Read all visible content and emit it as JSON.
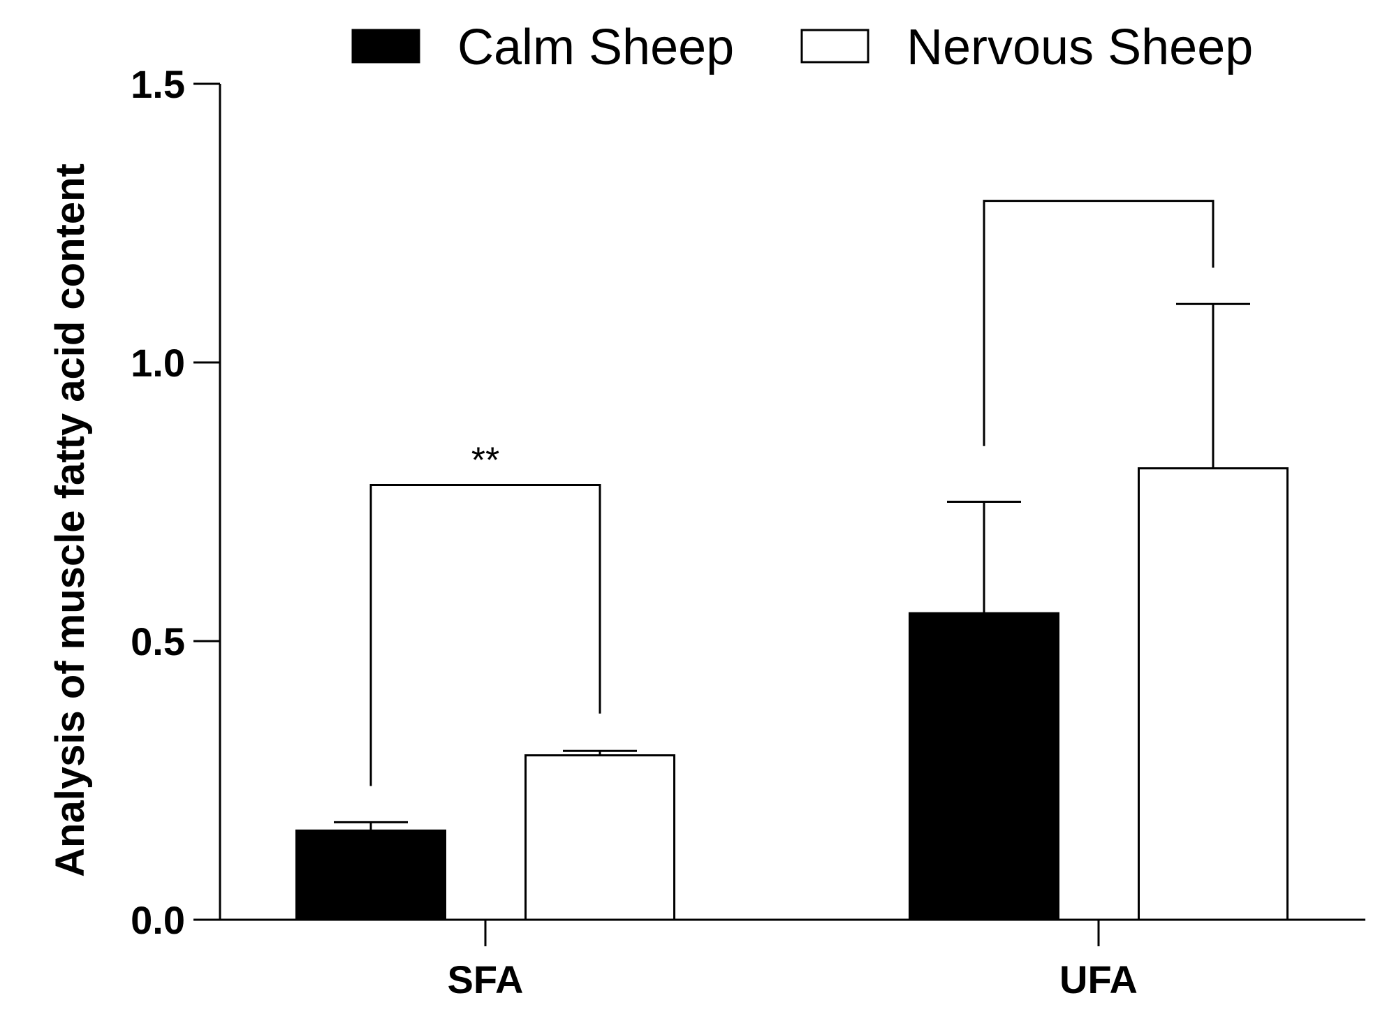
{
  "chart_data": {
    "type": "bar",
    "title": "",
    "xlabel": "",
    "ylabel": "Analysis of muscle fatty acid content",
    "ylim": [
      0,
      1.5
    ],
    "yticks": [
      "0.0",
      "0.5",
      "1.0",
      "1.5"
    ],
    "categories": [
      "SFA",
      "UFA"
    ],
    "series": [
      {
        "name": "Calm Sheep",
        "fill": "#000000",
        "values": [
          0.16,
          0.55
        ],
        "errors": [
          0.015,
          0.2
        ]
      },
      {
        "name": "Nervous Sheep",
        "fill": "#ffffff",
        "values": [
          0.295,
          0.81
        ],
        "errors": [
          0.008,
          0.295
        ]
      }
    ],
    "legend_position": "top",
    "significance": [
      {
        "category": "SFA",
        "label": "**",
        "bracket_value": 0.78,
        "left_drop_to": 0.24,
        "right_drop_to": 0.37
      },
      {
        "category": "UFA",
        "label": "",
        "bracket_value": 1.29,
        "left_drop_to": 0.85,
        "right_drop_to": 1.17
      }
    ]
  }
}
